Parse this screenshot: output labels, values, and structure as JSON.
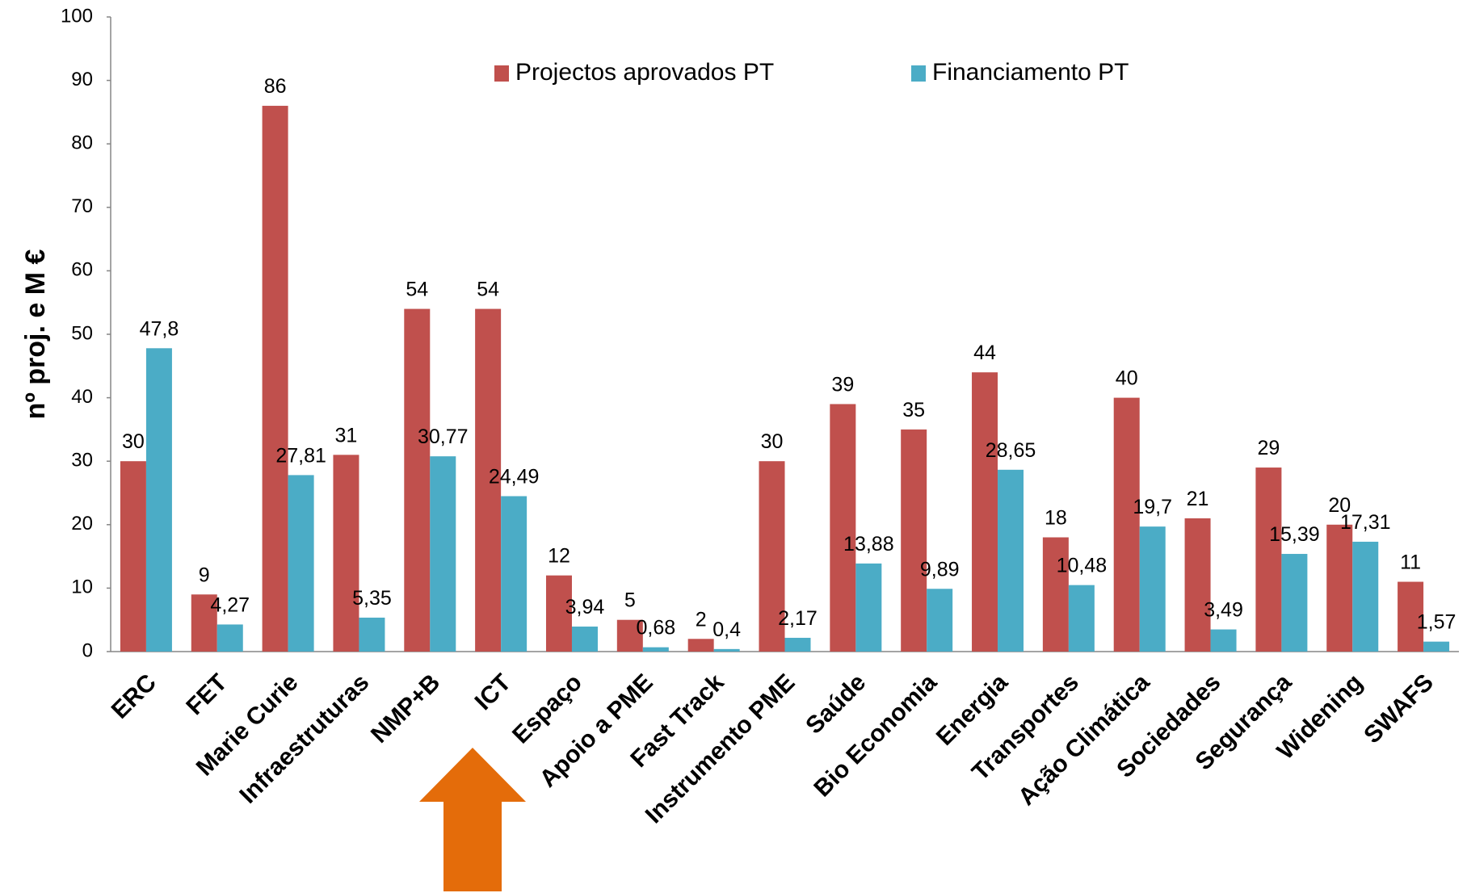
{
  "chart_data": {
    "type": "bar",
    "y_label": "nº proj. e M €",
    "categories": [
      "ERC",
      "FET",
      "Marie Curie",
      "Infraestruturas",
      "NMP+B",
      "ICT",
      "Espaço",
      "Apoio a PME",
      "Fast Track",
      "Instrumento PME",
      "Saúde",
      "Bio Economia",
      "Energia",
      "Transportes",
      "Ação Climática",
      "Sociedades",
      "Segurança",
      "Widening",
      "SWAFS"
    ],
    "series": [
      {
        "name": "Projectos aprovados PT",
        "color": "#c0504d",
        "values": [
          30,
          9,
          86,
          31,
          54,
          54,
          12,
          5,
          2,
          30,
          39,
          35,
          44,
          18,
          40,
          21,
          29,
          20,
          11
        ]
      },
      {
        "name": "Financiamento PT",
        "color": "#4bacc6",
        "values": [
          47.8,
          4.27,
          27.81,
          5.35,
          30.77,
          24.49,
          3.94,
          0.68,
          0.4,
          2.17,
          13.88,
          9.89,
          28.65,
          10.48,
          19.7,
          3.49,
          15.39,
          17.31,
          1.57
        ],
        "value_labels": [
          "47,8",
          "4,27",
          "27,81",
          "5,35",
          "30,77",
          "24,49",
          "3,94",
          "0,68",
          "0,4",
          "2,17",
          "13,88",
          "9,89",
          "28,65",
          "10,48",
          "19,7",
          "3,49",
          "15,39",
          "17,31",
          "1,57"
        ]
      }
    ],
    "ylim": [
      0,
      100
    ],
    "yticks": [
      0,
      10,
      20,
      30,
      40,
      50,
      60,
      70,
      80,
      90,
      100
    ],
    "grid": false,
    "legend": "top"
  }
}
